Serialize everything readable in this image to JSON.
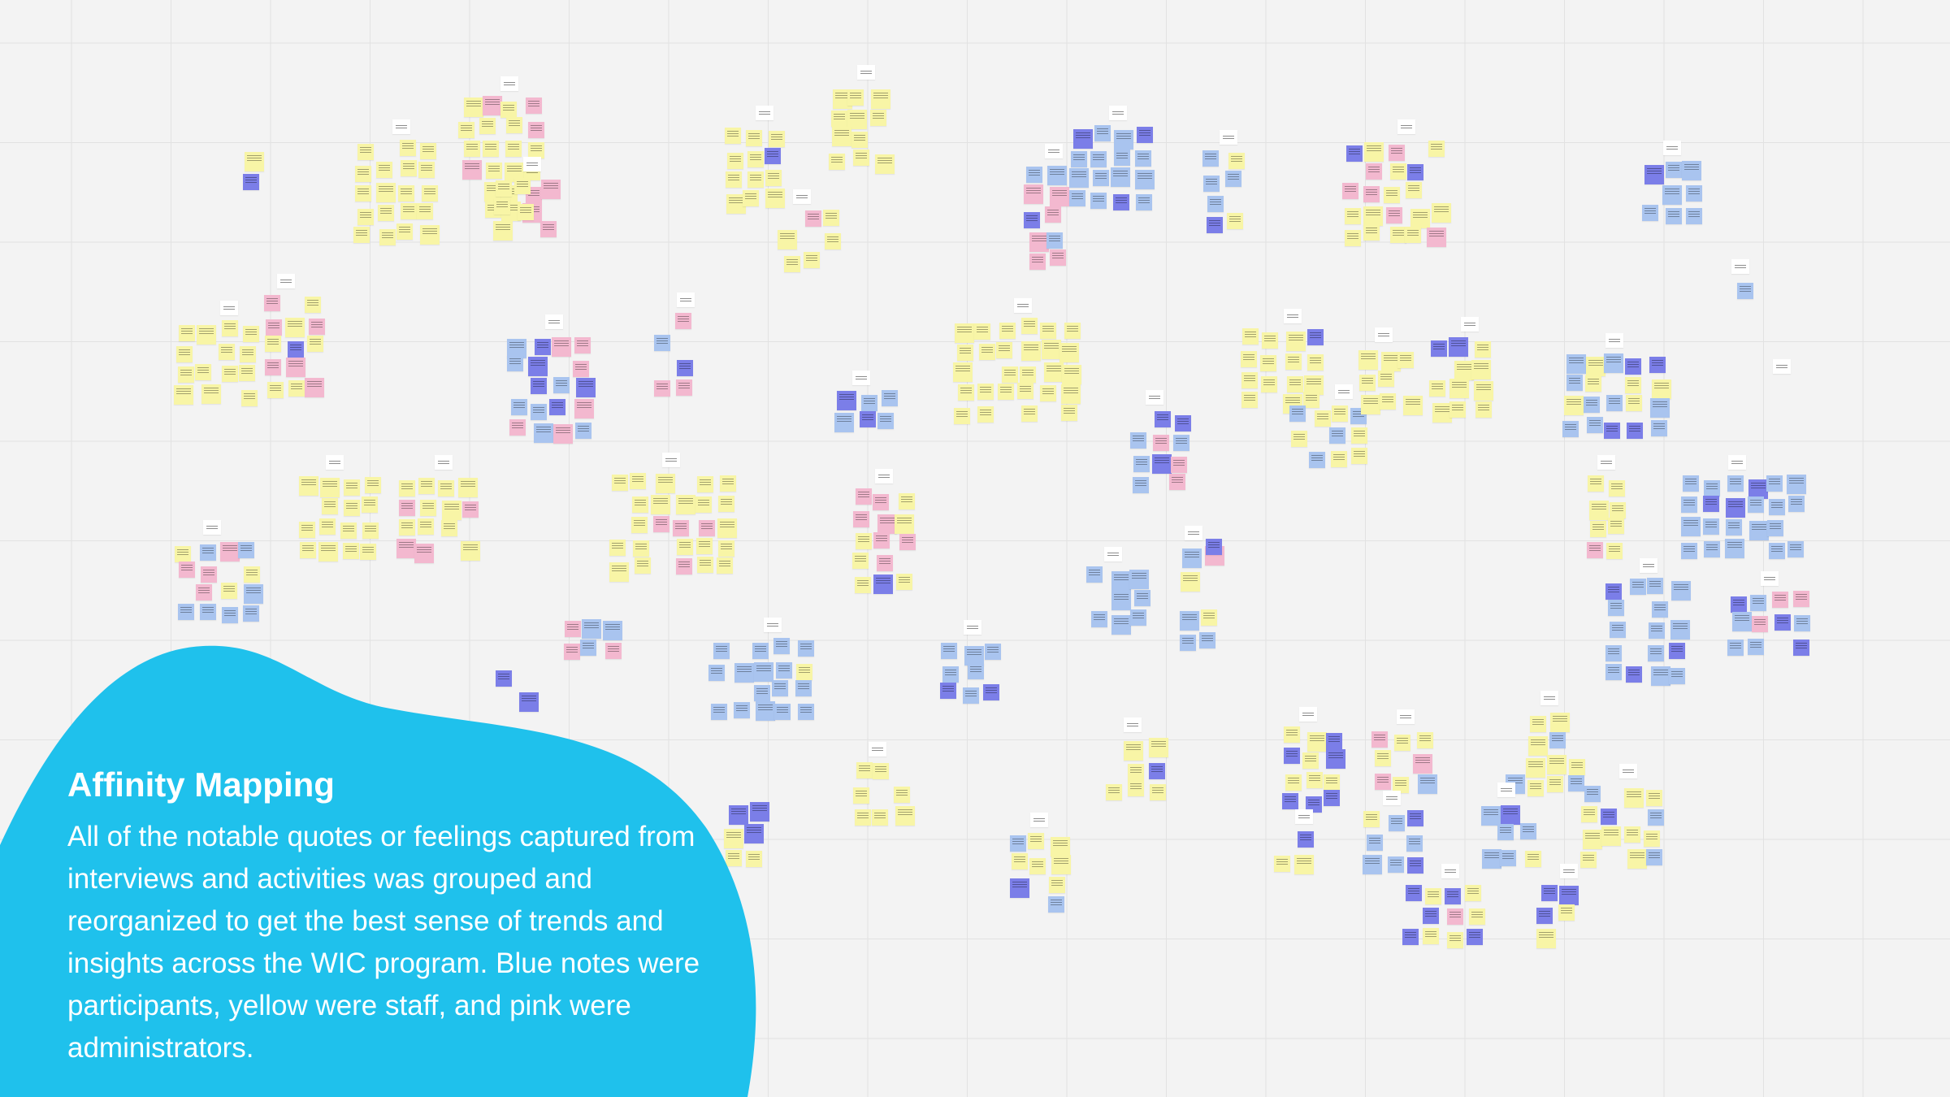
{
  "panel": {
    "title": "Affinity Mapping",
    "body": "All of the notable quotes or feelings captured from interviews and activities was grouped and reorganized to get the best sense of trends and insights across the WIC program. Blue notes were participants, yellow were staff, and pink were administrators."
  },
  "colors": {
    "board_background": "#f3f3f3",
    "grid_line": "#e2e2e2",
    "blob": "#1fc1ec",
    "participants_note": "#a9c4ef",
    "staff_note": "#f8f5a6",
    "administrators_note": "#f3b8cf",
    "header_note": "#7b7ee8",
    "label_card": "#ffffff"
  }
}
